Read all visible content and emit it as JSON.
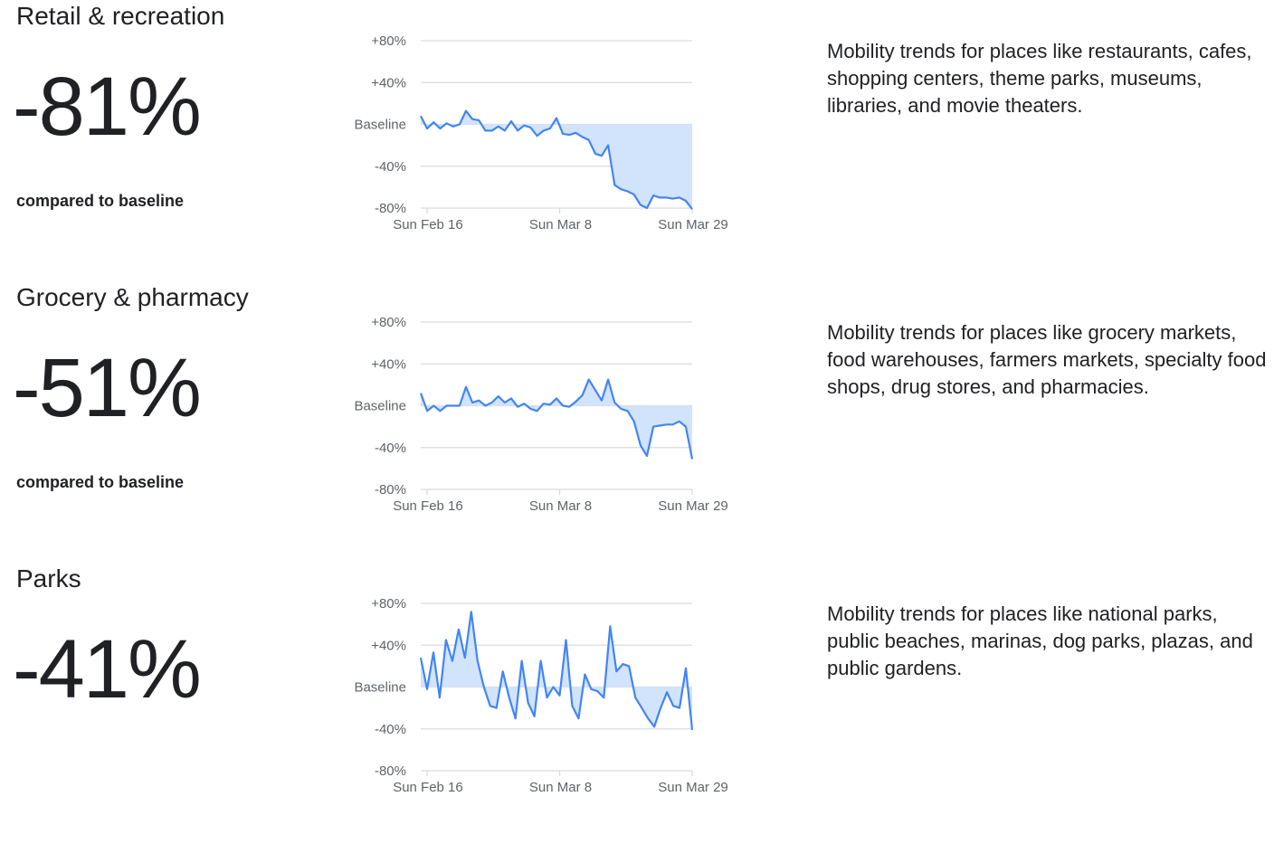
{
  "sections": [
    {
      "title": "Retail & recreation",
      "value": "-81%",
      "compared": "compared to baseline",
      "description": "Mobility trends for places like restaurants, cafes, shopping centers, theme parks, museums, libraries, and movie theaters."
    },
    {
      "title": "Grocery & pharmacy",
      "value": "-51%",
      "compared": "compared to baseline",
      "description": "Mobility trends for places like grocery markets, food warehouses, farmers markets, specialty food shops, drug stores, and pharmacies."
    },
    {
      "title": "Parks",
      "value": "-41%",
      "compared": "compared to baseline",
      "description": "Mobility trends for places like national parks, public beaches, marinas, dog parks, plazas, and public gardens."
    }
  ],
  "colors": {
    "line": "#4285f4",
    "fill": "#d2e3fc",
    "grid": "#dadce0",
    "text": "#202124",
    "tick": "#5f6368"
  },
  "chart_data": [
    {
      "type": "area",
      "title": "Retail & recreation",
      "ylim": [
        -80,
        80
      ],
      "yticks": [
        80,
        40,
        0,
        -40,
        -80
      ],
      "ytick_labels": [
        "+80%",
        "+40%",
        "Baseline",
        "-40%",
        "-80%"
      ],
      "x_start": "2020-02-15",
      "xticks": [
        "Sun Feb 16",
        "Sun Mar 8",
        "Sun Mar 29"
      ],
      "xtick_dates": [
        "2020-02-16",
        "2020-03-08",
        "2020-03-29"
      ],
      "grid": true,
      "series": [
        {
          "values": [
            8,
            -4,
            2,
            -4,
            1,
            -2,
            0,
            13,
            5,
            4,
            -6,
            -6,
            -2,
            -6,
            3,
            -6,
            -1,
            -3,
            -11,
            -6,
            -4,
            6,
            -9,
            -10,
            -8,
            -12,
            -15,
            -28,
            -30,
            -20,
            -58,
            -62,
            -64,
            -67,
            -77,
            -80,
            -68,
            -70,
            -70,
            -71,
            -70,
            -73,
            -81
          ]
        }
      ]
    },
    {
      "type": "area",
      "title": "Grocery & pharmacy",
      "ylim": [
        -80,
        80
      ],
      "yticks": [
        80,
        40,
        0,
        -40,
        -80
      ],
      "ytick_labels": [
        "+80%",
        "+40%",
        "Baseline",
        "-40%",
        "-80%"
      ],
      "x_start": "2020-02-15",
      "xticks": [
        "Sun Feb 16",
        "Sun Mar 8",
        "Sun Mar 29"
      ],
      "xtick_dates": [
        "2020-02-16",
        "2020-03-08",
        "2020-03-29"
      ],
      "grid": true,
      "series": [
        {
          "values": [
            12,
            -5,
            0,
            -5,
            0,
            0,
            0,
            18,
            3,
            5,
            0,
            3,
            9,
            3,
            7,
            -1,
            2,
            -3,
            -5,
            2,
            1,
            7,
            0,
            -1,
            4,
            10,
            25,
            15,
            5,
            25,
            3,
            -3,
            -5,
            -15,
            -38,
            -48,
            -20,
            -19,
            -18,
            -18,
            -15,
            -20,
            -51
          ]
        }
      ]
    },
    {
      "type": "area",
      "title": "Parks",
      "ylim": [
        -80,
        80
      ],
      "yticks": [
        80,
        40,
        0,
        -40,
        -80
      ],
      "ytick_labels": [
        "+80%",
        "+40%",
        "Baseline",
        "-40%",
        "-80%"
      ],
      "x_start": "2020-02-15",
      "xticks": [
        "Sun Feb 16",
        "Sun Mar 8",
        "Sun Mar 29"
      ],
      "xtick_dates": [
        "2020-02-16",
        "2020-03-08",
        "2020-03-29"
      ],
      "grid": true,
      "series": [
        {
          "values": [
            28,
            -2,
            33,
            -10,
            45,
            25,
            55,
            28,
            72,
            25,
            0,
            -18,
            -20,
            15,
            -10,
            -30,
            25,
            -15,
            -28,
            25,
            -10,
            0,
            -8,
            45,
            -18,
            -30,
            12,
            -2,
            -4,
            -10,
            58,
            15,
            22,
            20,
            -10,
            -20,
            -30,
            -38,
            -20,
            -5,
            -18,
            -20,
            18,
            -41
          ]
        }
      ]
    }
  ]
}
